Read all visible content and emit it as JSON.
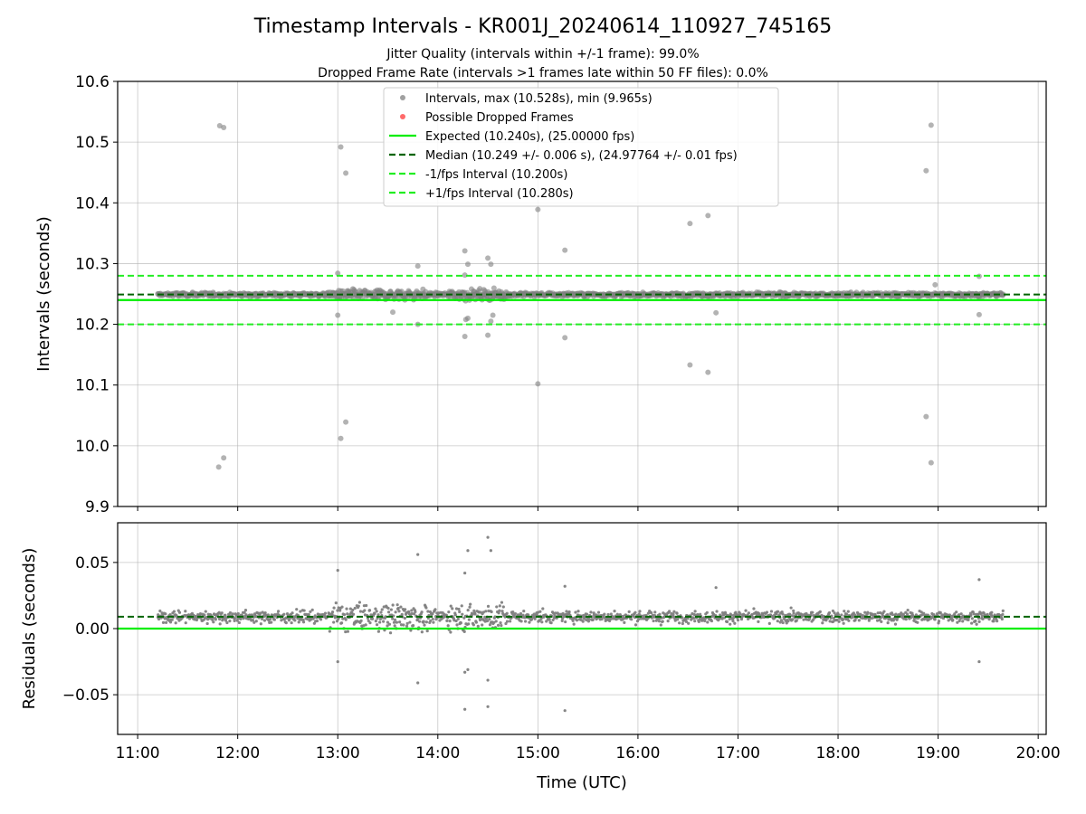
{
  "figure": {
    "title": "Timestamp Intervals - KR001J_20240614_110927_745165",
    "subtitle_lines": [
      "Jitter Quality (intervals within +/-1 frame): 99.0%",
      "Dropped Frame Rate (intervals >1 frames late within 50 FF files): 0.0%"
    ]
  },
  "colors": {
    "intervals": "#808080",
    "dropped": "#ff0000",
    "expected": "#00ee00",
    "median": "#006400",
    "fps_band": "#22ee22",
    "grid": "#b0b0b0"
  },
  "chart_data": [
    {
      "type": "scatter",
      "ylabel": "Intervals (seconds)",
      "ylim": [
        9.9,
        10.6
      ],
      "yticks": [
        9.9,
        10.0,
        10.1,
        10.2,
        10.3,
        10.4,
        10.5,
        10.6
      ],
      "ytick_labels": [
        "9.9",
        "10.0",
        "10.1",
        "10.2",
        "10.3",
        "10.4",
        "10.5",
        "10.6"
      ],
      "xlim_hours": [
        10.8,
        20.08
      ],
      "xticks_hours": [
        11,
        12,
        13,
        14,
        15,
        16,
        17,
        18,
        19,
        20
      ],
      "grid": true,
      "legend_position": "top-center",
      "legend": [
        {
          "label": "Intervals, max (10.528s), min (9.965s)",
          "kind": "dot",
          "color": "#a0a0a0"
        },
        {
          "label": "Possible Dropped Frames",
          "kind": "dot",
          "color": "#ff6a6a"
        },
        {
          "label": "Expected (10.240s), (25.00000 fps)",
          "kind": "line",
          "color": "#00ee00"
        },
        {
          "label": "Median (10.249 +/- 0.006 s), (24.97764 +/- 0.01 fps)",
          "kind": "dash",
          "color": "#006400"
        },
        {
          "label": "-1/fps Interval (10.200s)",
          "kind": "dash",
          "color": "#22ee22"
        },
        {
          "label": "+1/fps Interval (10.280s)",
          "kind": "dash",
          "color": "#22ee22"
        }
      ],
      "hlines": [
        {
          "name": "expected",
          "y": 10.24,
          "style": "solid"
        },
        {
          "name": "median",
          "y": 10.249,
          "style": "dashed"
        },
        {
          "name": "minus_fps",
          "y": 10.2,
          "style": "dashed"
        },
        {
          "name": "plus_fps",
          "y": 10.28,
          "style": "dashed"
        }
      ],
      "series": [
        {
          "name": "Intervals",
          "data_range_hours": [
            11.2,
            19.65
          ],
          "band_center": 10.249,
          "outliers": [
            {
              "x": 11.82,
              "y": 10.527
            },
            {
              "x": 11.86,
              "y": 10.524
            },
            {
              "x": 11.81,
              "y": 9.965
            },
            {
              "x": 11.86,
              "y": 9.98
            },
            {
              "x": 13.03,
              "y": 10.492
            },
            {
              "x": 13.08,
              "y": 10.449
            },
            {
              "x": 13.03,
              "y": 10.012
            },
            {
              "x": 13.08,
              "y": 10.039
            },
            {
              "x": 13.0,
              "y": 10.284
            },
            {
              "x": 13.0,
              "y": 10.215
            },
            {
              "x": 13.8,
              "y": 10.296
            },
            {
              "x": 13.8,
              "y": 10.2
            },
            {
              "x": 13.55,
              "y": 10.22
            },
            {
              "x": 14.27,
              "y": 10.321
            },
            {
              "x": 14.3,
              "y": 10.299
            },
            {
              "x": 14.27,
              "y": 10.281
            },
            {
              "x": 14.28,
              "y": 10.208
            },
            {
              "x": 14.27,
              "y": 10.18
            },
            {
              "x": 14.3,
              "y": 10.21
            },
            {
              "x": 14.5,
              "y": 10.309
            },
            {
              "x": 14.53,
              "y": 10.299
            },
            {
              "x": 14.5,
              "y": 10.182
            },
            {
              "x": 14.53,
              "y": 10.205
            },
            {
              "x": 14.55,
              "y": 10.215
            },
            {
              "x": 15.0,
              "y": 10.389
            },
            {
              "x": 15.0,
              "y": 10.102
            },
            {
              "x": 15.27,
              "y": 10.322
            },
            {
              "x": 15.27,
              "y": 10.178
            },
            {
              "x": 16.52,
              "y": 10.366
            },
            {
              "x": 16.7,
              "y": 10.379
            },
            {
              "x": 16.52,
              "y": 10.133
            },
            {
              "x": 16.7,
              "y": 10.121
            },
            {
              "x": 16.78,
              "y": 10.219
            },
            {
              "x": 18.88,
              "y": 10.453
            },
            {
              "x": 18.93,
              "y": 10.528
            },
            {
              "x": 18.88,
              "y": 10.048
            },
            {
              "x": 18.93,
              "y": 9.972
            },
            {
              "x": 19.41,
              "y": 10.279
            },
            {
              "x": 19.41,
              "y": 10.216
            },
            {
              "x": 18.97,
              "y": 10.265
            }
          ]
        }
      ]
    },
    {
      "type": "scatter",
      "xlabel": "Time (UTC)",
      "ylabel": "Residuals (seconds)",
      "ylim": [
        -0.08,
        0.08
      ],
      "yticks": [
        -0.05,
        0.0,
        0.05
      ],
      "ytick_labels": [
        "−0.05",
        "0.00",
        "0.05"
      ],
      "xlim_hours": [
        10.8,
        20.08
      ],
      "xticks_hours": [
        11,
        12,
        13,
        14,
        15,
        16,
        17,
        18,
        19,
        20
      ],
      "xtick_labels": [
        "11:00",
        "12:00",
        "13:00",
        "14:00",
        "15:00",
        "16:00",
        "17:00",
        "18:00",
        "19:00",
        "20:00"
      ],
      "grid": true,
      "hlines": [
        {
          "name": "zero",
          "y": 0.0,
          "style": "solid"
        },
        {
          "name": "median_offset",
          "y": 0.009,
          "style": "dashed"
        }
      ],
      "series": [
        {
          "name": "Residuals",
          "data_range_hours": [
            11.2,
            19.65
          ],
          "band_center": 0.009,
          "outliers": [
            {
              "x": 14.5,
              "y": 0.069
            },
            {
              "x": 14.53,
              "y": 0.059
            },
            {
              "x": 14.3,
              "y": 0.059
            },
            {
              "x": 14.27,
              "y": 0.042
            },
            {
              "x": 13.8,
              "y": 0.056
            },
            {
              "x": 13.0,
              "y": 0.044
            },
            {
              "x": 15.27,
              "y": 0.032
            },
            {
              "x": 16.78,
              "y": 0.031
            },
            {
              "x": 19.41,
              "y": 0.037
            },
            {
              "x": 14.27,
              "y": -0.061
            },
            {
              "x": 14.5,
              "y": -0.059
            },
            {
              "x": 15.27,
              "y": -0.062
            },
            {
              "x": 13.8,
              "y": -0.041
            },
            {
              "x": 14.5,
              "y": -0.039
            },
            {
              "x": 14.27,
              "y": -0.033
            },
            {
              "x": 14.3,
              "y": -0.031
            },
            {
              "x": 13.0,
              "y": -0.025
            },
            {
              "x": 19.41,
              "y": -0.025
            }
          ]
        }
      ]
    }
  ]
}
